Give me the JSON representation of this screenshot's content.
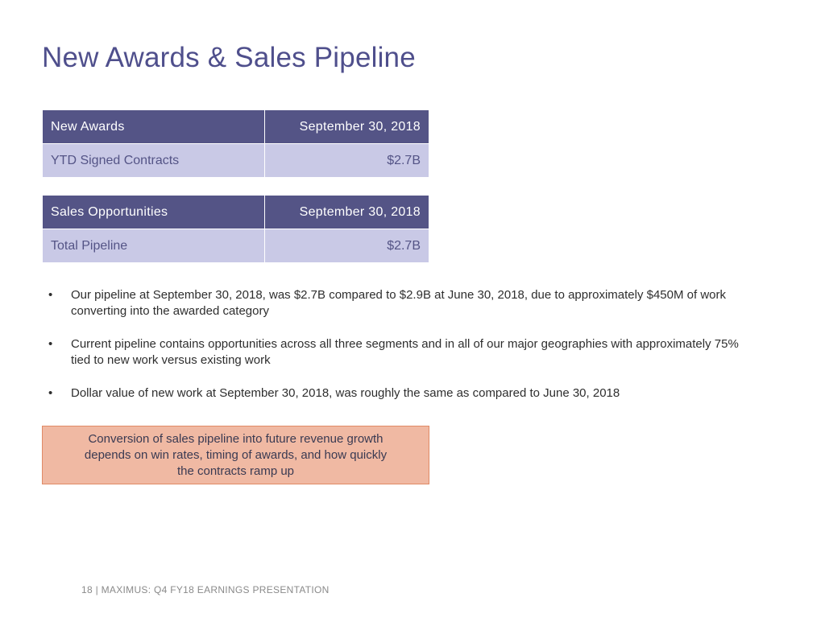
{
  "title": "New Awards & Sales Pipeline",
  "awards_table": {
    "header": [
      "New Awards",
      "September 30, 2018"
    ],
    "row": [
      "YTD Signed Contracts",
      "$2.7B"
    ]
  },
  "sales_table": {
    "header": [
      "Sales Opportunities",
      "September 30, 2018"
    ],
    "row": [
      "Total Pipeline",
      "$2.7B"
    ]
  },
  "bullet_symbol": "•",
  "bullets": [
    "Our pipeline at September 30, 2018, was $2.7B compared to $2.9B at June 30, 2018, due to approximately $450M of work converting into the awarded category",
    "Current pipeline contains opportunities across all three segments and in all of our major geographies with approximately 75% tied to new work versus existing work",
    "Dollar value of new work at September 30, 2018, was roughly the same as compared to June 30, 2018"
  ],
  "callout": "Conversion of sales pipeline into future revenue growth depends on win rates, timing of awards, and how quickly the contracts ramp up",
  "footer": "18 | MAXIMUS: Q4 FY18 EARNINGS PRESENTATION",
  "colors": {
    "title": "#4f4f8c",
    "table_header": "#545486",
    "table_row": "#c9c9e6",
    "callout_fill": "#f0b9a3",
    "callout_border": "#e08a66"
  }
}
